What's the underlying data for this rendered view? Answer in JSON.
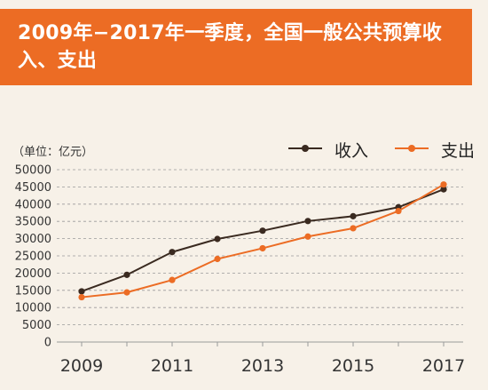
{
  "title": "2009年−2017年一季度，全国一般公共预算收入、支出",
  "unit_label": "（单位：亿元）",
  "colors": {
    "banner": "#ec6c24",
    "income": "#3a2a20",
    "expenditure": "#ec6c24",
    "grid": "#9a9a9a",
    "background": "#f7f1e8"
  },
  "chart_data": {
    "type": "line",
    "x": [
      2009,
      2010,
      2011,
      2012,
      2013,
      2014,
      2015,
      2016,
      2017
    ],
    "xticks": [
      "2009",
      "2011",
      "2013",
      "2015",
      "2017"
    ],
    "ylim": [
      0,
      50000
    ],
    "yticks": [
      0,
      5000,
      10000,
      15000,
      20000,
      25000,
      30000,
      35000,
      40000,
      45000,
      50000
    ],
    "grid": true,
    "legend_position": "top-right",
    "series": [
      {
        "name": "收入",
        "values": [
          14700,
          19500,
          26100,
          29900,
          32300,
          35100,
          36500,
          39100,
          44300
        ]
      },
      {
        "name": "支出",
        "values": [
          13000,
          14400,
          18000,
          24100,
          27200,
          30600,
          33000,
          38000,
          45700
        ]
      }
    ]
  }
}
